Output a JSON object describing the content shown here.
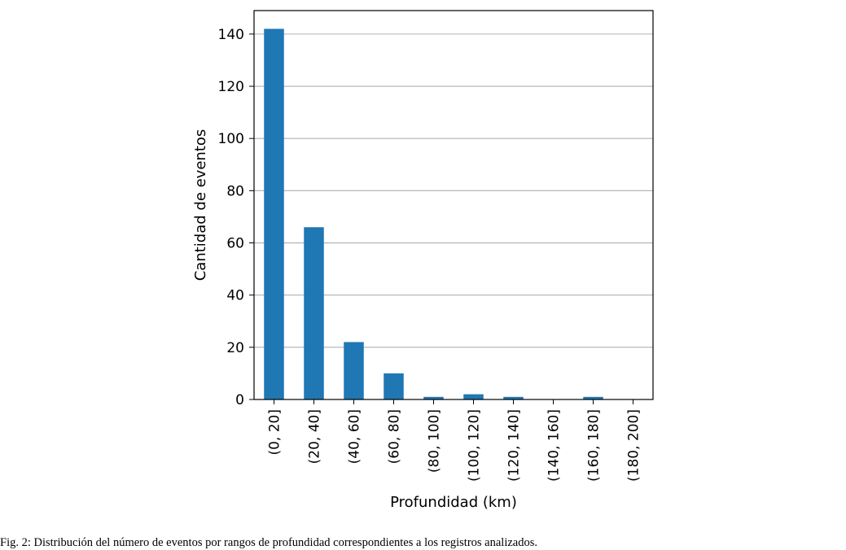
{
  "caption": "Fig. 2: Distribución del número de eventos por rangos de profundidad correspondientes a los registros analizados.",
  "chart_data": {
    "type": "bar",
    "categories": [
      "(0, 20]",
      "(20, 40]",
      "(40, 60]",
      "(60, 80]",
      "(80, 100]",
      "(100, 120]",
      "(120, 140]",
      "(140, 160]",
      "(160, 180]",
      "(180, 200]"
    ],
    "values": [
      142,
      66,
      22,
      10,
      1,
      2,
      1,
      0,
      1,
      0
    ],
    "xlabel": "Profundidad (km)",
    "ylabel": "Cantidad de eventos",
    "ylim": [
      0,
      149
    ],
    "yticks": [
      0,
      20,
      40,
      60,
      80,
      100,
      120,
      140
    ],
    "grid": "horizontal",
    "bar_color": "#1f77b4",
    "grid_color": "#b0b0b0"
  }
}
